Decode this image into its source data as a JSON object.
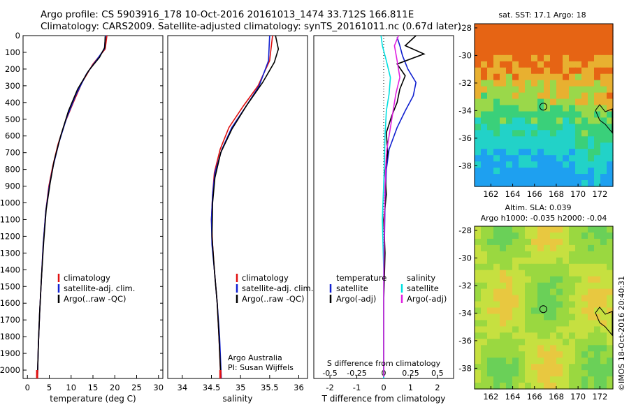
{
  "header": {
    "line1": "Argo profile: CS 5903916_178 10-Oct-2016 20161013_1474 33.712S 166.811E",
    "line2": "Climatology: CARS2009. Satellite-adjusted climatology: synTS_20161011.nc (0.67d later)"
  },
  "depth_ticks": [
    "0",
    "100",
    "200",
    "300",
    "400",
    "500",
    "600",
    "700",
    "800",
    "900",
    "1000",
    "1100",
    "1200",
    "1300",
    "1400",
    "1500",
    "1600",
    "1700",
    "1800",
    "1900",
    "2000"
  ],
  "colors": {
    "climatology": "#e01010",
    "satellite": "#1020d0",
    "argo": "#000000",
    "sat_salinity": "#00e0e0",
    "argo_salinity": "#e020e0"
  },
  "chart_data": [
    {
      "type": "line",
      "panel": "temperature",
      "xlabel": "temperature (deg C)",
      "xlim": [
        -1,
        31
      ],
      "ylim": [
        2050,
        0
      ],
      "x_ticks": [
        "0",
        "5",
        "10",
        "15",
        "20",
        "25",
        "30"
      ],
      "y_reversed": true,
      "legend": [
        "climatology",
        "satellite-adj. clim.",
        "Argo(..raw -QC)"
      ],
      "series": [
        {
          "name": "climatology",
          "color": "#e01010",
          "points": [
            [
              18.2,
              0
            ],
            [
              17.8,
              80
            ],
            [
              15,
              170
            ],
            [
              12.5,
              280
            ],
            [
              10.5,
              400
            ],
            [
              8.6,
              520
            ],
            [
              7,
              650
            ],
            [
              5.8,
              780
            ],
            [
              4.9,
              900
            ],
            [
              4.2,
              1050
            ],
            [
              3.6,
              1250
            ],
            [
              3.2,
              1450
            ],
            [
              2.8,
              1650
            ],
            [
              2.5,
              1850
            ],
            [
              2.3,
              2050
            ]
          ]
        },
        {
          "name": "satellite-adj. clim.",
          "color": "#1020d0",
          "points": [
            [
              17.9,
              0
            ],
            [
              17.6,
              80
            ],
            [
              16,
              140
            ],
            [
              13.5,
              230
            ],
            [
              11,
              360
            ],
            [
              9,
              490
            ],
            [
              7.2,
              640
            ],
            [
              5.9,
              780
            ],
            [
              5,
              900
            ],
            [
              4.2,
              1050
            ],
            [
              3.6,
              1250
            ],
            [
              3.2,
              1450
            ],
            [
              2.8,
              1650
            ],
            [
              2.5,
              1850
            ],
            [
              2.3,
              2050
            ]
          ]
        },
        {
          "name": "Argo(..raw -QC)",
          "color": "#000000",
          "points": [
            [
              17.8,
              5
            ],
            [
              17.7,
              70
            ],
            [
              16.5,
              130
            ],
            [
              14,
              210
            ],
            [
              11.5,
              320
            ],
            [
              9.4,
              450
            ],
            [
              7.6,
              600
            ],
            [
              6.1,
              750
            ],
            [
              5.2,
              880
            ],
            [
              4.3,
              1040
            ],
            [
              3.7,
              1240
            ],
            [
              3.2,
              1450
            ],
            [
              2.8,
              1650
            ],
            [
              2.5,
              1850
            ],
            [
              2.3,
              2040
            ]
          ]
        }
      ]
    },
    {
      "type": "line",
      "panel": "salinity",
      "xlabel": "salinity",
      "xlim": [
        33.75,
        36.15
      ],
      "ylim": [
        2050,
        0
      ],
      "x_ticks": [
        "34",
        "34.5",
        "35",
        "35.5",
        "36"
      ],
      "y_reversed": true,
      "legend": [
        "climatology",
        "satellite-adj. clim.",
        "Argo(..raw -QC)"
      ],
      "annotations": [
        "Argo Australia",
        "PI: Susan Wijffels"
      ],
      "series": [
        {
          "name": "climatology",
          "color": "#e01010",
          "points": [
            [
              35.55,
              0
            ],
            [
              35.5,
              150
            ],
            [
              35.3,
              300
            ],
            [
              35.05,
              420
            ],
            [
              34.8,
              550
            ],
            [
              34.65,
              680
            ],
            [
              34.55,
              820
            ],
            [
              34.52,
              950
            ],
            [
              34.5,
              1100
            ],
            [
              34.52,
              1250
            ],
            [
              34.55,
              1400
            ],
            [
              34.6,
              1600
            ],
            [
              34.63,
              1800
            ],
            [
              34.66,
              2050
            ]
          ]
        },
        {
          "name": "satellite-adj. clim.",
          "color": "#1020d0",
          "points": [
            [
              35.5,
              0
            ],
            [
              35.48,
              150
            ],
            [
              35.32,
              300
            ],
            [
              35.1,
              420
            ],
            [
              34.85,
              550
            ],
            [
              34.68,
              680
            ],
            [
              34.56,
              820
            ],
            [
              34.52,
              950
            ],
            [
              34.5,
              1100
            ],
            [
              34.51,
              1250
            ],
            [
              34.55,
              1400
            ],
            [
              34.6,
              1600
            ],
            [
              34.64,
              1800
            ],
            [
              34.67,
              2050
            ]
          ]
        },
        {
          "name": "Argo(..raw -QC)",
          "color": "#000000",
          "points": [
            [
              35.6,
              0
            ],
            [
              35.65,
              80
            ],
            [
              35.58,
              160
            ],
            [
              35.38,
              280
            ],
            [
              35.1,
              420
            ],
            [
              34.85,
              560
            ],
            [
              34.66,
              700
            ],
            [
              34.56,
              850
            ],
            [
              34.52,
              1000
            ],
            [
              34.51,
              1200
            ],
            [
              34.55,
              1400
            ],
            [
              34.6,
              1600
            ],
            [
              34.63,
              1800
            ],
            [
              34.66,
              2030
            ]
          ]
        }
      ]
    },
    {
      "type": "line",
      "panel": "difference",
      "xlabel": "T difference from climatology",
      "xlabel_top": "S difference from climatology",
      "xlim": [
        -2.6,
        2.6
      ],
      "ylim": [
        2050,
        0
      ],
      "x_ticks": [
        "-2",
        "-1",
        "0",
        "1",
        "2"
      ],
      "s_ticks": [
        "-0.5",
        "-0.25",
        "0",
        "0.25",
        "0.5"
      ],
      "y_reversed": true,
      "legend": [
        "temperature",
        "satellite",
        "Argo(-adj)",
        "salinity",
        "satellite",
        "Argo(-adj)"
      ],
      "series": [
        {
          "name": "satellite",
          "color": "#1020d0",
          "points": [
            [
              0.5,
              10
            ],
            [
              0.6,
              60
            ],
            [
              0.7,
              120
            ],
            [
              0.9,
              200
            ],
            [
              1.2,
              280
            ],
            [
              1.1,
              360
            ],
            [
              0.8,
              450
            ],
            [
              0.5,
              550
            ],
            [
              0.2,
              680
            ],
            [
              0.1,
              800
            ],
            [
              0.05,
              1000
            ],
            [
              0.02,
              1300
            ],
            [
              0,
              1600
            ],
            [
              0,
              2050
            ]
          ]
        },
        {
          "name": "Argo(-adj)",
          "color": "#000000",
          "points": [
            [
              1.2,
              0
            ],
            [
              0.8,
              60
            ],
            [
              1.5,
              110
            ],
            [
              0.5,
              170
            ],
            [
              0.8,
              240
            ],
            [
              0.6,
              320
            ],
            [
              0.5,
              400
            ],
            [
              0.3,
              480
            ],
            [
              0.1,
              580
            ],
            [
              0.15,
              700
            ],
            [
              0.05,
              820
            ],
            [
              0.1,
              950
            ],
            [
              0,
              1100
            ],
            [
              0.05,
              1300
            ],
            [
              0,
              1600
            ],
            [
              0,
              2040
            ]
          ]
        },
        {
          "name": "satellite",
          "color": "#00e0e0",
          "points": [
            [
              -0.1,
              0
            ],
            [
              -0.05,
              60
            ],
            [
              0.1,
              150
            ],
            [
              0.25,
              250
            ],
            [
              0.2,
              350
            ],
            [
              0.1,
              450
            ],
            [
              0.05,
              600
            ],
            [
              0.02,
              800
            ],
            [
              -0.05,
              1100
            ],
            [
              0,
              1400
            ],
            [
              0,
              2050
            ]
          ]
        },
        {
          "name": "Argo(-adj)",
          "color": "#e020e0",
          "points": [
            [
              0.55,
              0
            ],
            [
              0.4,
              60
            ],
            [
              0.5,
              150
            ],
            [
              0.6,
              250
            ],
            [
              0.45,
              350
            ],
            [
              0.35,
              450
            ],
            [
              0.25,
              550
            ],
            [
              0.1,
              700
            ],
            [
              0.05,
              900
            ],
            [
              0.02,
              1200
            ],
            [
              0,
              1500
            ],
            [
              0,
              2040
            ]
          ]
        }
      ]
    },
    {
      "type": "heatmap",
      "panel": "sst-map",
      "title": "sat. SST: 17.1  Argo: 18",
      "x_ticks": [
        "162",
        "164",
        "166",
        "168",
        "170",
        "172"
      ],
      "y_ticks": [
        "-28",
        "-30",
        "-32",
        "-34",
        "-36",
        "-38"
      ],
      "xlim": [
        160.5,
        173.2
      ],
      "ylim": [
        -39.5,
        -27.7
      ],
      "marker": [
        166.811,
        -33.712
      ]
    },
    {
      "type": "heatmap",
      "panel": "sla-map",
      "title": "Altim. SLA: 0.039",
      "subtitle": "Argo h1000: -0.035 h2000: -0.04",
      "x_ticks": [
        "162",
        "164",
        "166",
        "168",
        "170",
        "172"
      ],
      "y_ticks": [
        "-28",
        "-30",
        "-32",
        "-34",
        "-36",
        "-38"
      ],
      "xlim": [
        160.5,
        173.2
      ],
      "ylim": [
        -39.5,
        -27.7
      ],
      "marker": [
        166.811,
        -33.712
      ]
    }
  ],
  "side_label": "©IMOS 18-Oct-2016 20:40:31"
}
